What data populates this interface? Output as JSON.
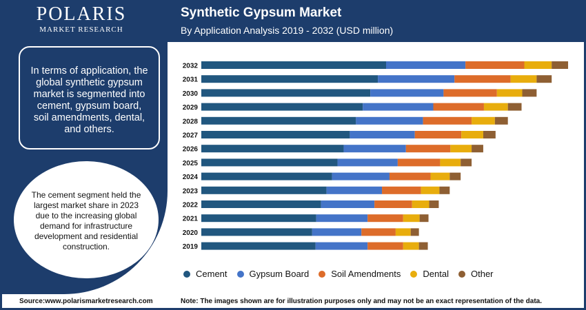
{
  "brand": {
    "name": "POLARIS",
    "sub": "MARKET RESEARCH"
  },
  "header": {
    "title": "Synthetic Gypsum Market",
    "subtitle": "By Application Analysis 2019 - 2032 (USD million)"
  },
  "sidebar": {
    "box1": "In terms of application, the global synthetic gypsum market is segmented into cement, gypsum board, soil amendments, dental, and others.",
    "box2": "The cement segment held the largest market share in 2023 due to the increasing global demand for infrastructure development and residential construction."
  },
  "footer": {
    "source": "Source:www.polarismarketresearch.com",
    "note": "Note: The images shown are for illustration purposes only and may not be an exact representation of the data."
  },
  "colors": {
    "Cement": "#21577f",
    "Gypsum Board": "#4474c8",
    "Soil Amendments": "#dd6c2a",
    "Dental": "#e8ad0d",
    "Other": "#8e5f33"
  },
  "chart_data": {
    "type": "bar",
    "orientation": "horizontal",
    "stacked": true,
    "categories": [
      "2032",
      "2031",
      "2030",
      "2029",
      "2028",
      "2027",
      "2026",
      "2025",
      "2024",
      "2023",
      "2022",
      "2021",
      "2020",
      "2019"
    ],
    "series": [
      {
        "name": "Cement",
        "values": [
          270,
          258,
          247,
          236,
          226,
          217,
          208,
          199,
          191,
          183,
          175,
          168,
          162,
          167
        ]
      },
      {
        "name": "Gypsum Board",
        "values": [
          116,
          112,
          107,
          103,
          98,
          95,
          91,
          88,
          84,
          81,
          78,
          75,
          72,
          76
        ]
      },
      {
        "name": "Soil Amendments",
        "values": [
          86,
          82,
          78,
          74,
          71,
          68,
          65,
          62,
          60,
          57,
          55,
          52,
          50,
          52
        ]
      },
      {
        "name": "Dental",
        "values": [
          40,
          38,
          37,
          35,
          34,
          32,
          31,
          30,
          28,
          27,
          25,
          24,
          22,
          23
        ]
      },
      {
        "name": "Other",
        "values": [
          24,
          22,
          21,
          20,
          19,
          18,
          17,
          16,
          16,
          15,
          14,
          13,
          12,
          13
        ]
      }
    ],
    "grid": false,
    "legend": "bottom"
  }
}
